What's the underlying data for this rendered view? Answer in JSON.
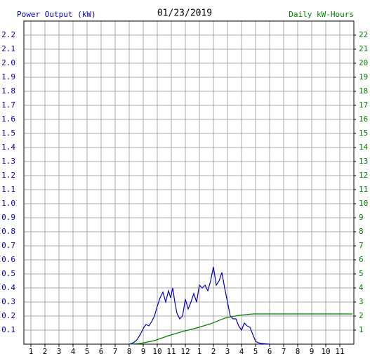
{
  "chart_data": {
    "type": "line",
    "title": "01/23/2019",
    "ylabel": "Power Output (kW)",
    "y2label": "Daily kW-Hours",
    "ylabel_color": "#0000c0",
    "y2label_color": "#008000",
    "grid": true,
    "xlim": [
      0.5,
      24
    ],
    "ylim": [
      0,
      2.3
    ],
    "y2lim": [
      0,
      23
    ],
    "xticks": [
      1,
      2,
      3,
      4,
      5,
      6,
      7,
      8,
      9,
      10,
      11,
      12,
      {
        "value": 13,
        "label": "1"
      },
      {
        "value": 14,
        "label": "2"
      },
      {
        "value": 15,
        "label": "3"
      },
      {
        "value": 16,
        "label": "4"
      },
      {
        "value": 17,
        "label": "5"
      },
      {
        "value": 18,
        "label": "6"
      },
      {
        "value": 19,
        "label": "7"
      },
      {
        "value": 20,
        "label": "8"
      },
      {
        "value": 21,
        "label": "9"
      },
      {
        "value": 22,
        "label": "10"
      },
      {
        "value": 23,
        "label": "11"
      }
    ],
    "yticks": [
      0.1,
      0.2,
      0.3,
      0.4,
      0.5,
      0.6,
      0.7,
      0.8,
      0.9,
      {
        "value": 1,
        "label": "1.0"
      },
      1.1,
      1.2,
      1.3,
      1.4,
      1.5,
      1.6,
      1.7,
      1.8,
      1.9,
      {
        "value": 2,
        "label": "2.0"
      },
      2.1,
      2.2
    ],
    "y2ticks": [
      1,
      2,
      3,
      4,
      5,
      6,
      7,
      8,
      9,
      10,
      11,
      12,
      13,
      14,
      15,
      16,
      17,
      18,
      19,
      20,
      21,
      22
    ],
    "series": [
      {
        "name": "Power Output (kW)",
        "color": "#0000c0",
        "axis": "y",
        "x": [
          8.0,
          8.3,
          8.55,
          8.8,
          9.05,
          9.2,
          9.4,
          9.6,
          9.8,
          10.0,
          10.2,
          10.4,
          10.6,
          10.8,
          10.95,
          11.1,
          11.25,
          11.4,
          11.6,
          11.8,
          12.0,
          12.2,
          12.4,
          12.6,
          12.8,
          13.0,
          13.2,
          13.4,
          13.6,
          13.8,
          14.0,
          14.2,
          14.4,
          14.6,
          14.8,
          15.0,
          15.2,
          15.4,
          15.6,
          15.8,
          16.0,
          16.2,
          16.4,
          16.6,
          16.8,
          17.0,
          17.2,
          17.4,
          18.0
        ],
        "values": [
          0,
          0.01,
          0.03,
          0.07,
          0.12,
          0.14,
          0.13,
          0.16,
          0.2,
          0.27,
          0.33,
          0.37,
          0.3,
          0.38,
          0.33,
          0.4,
          0.3,
          0.22,
          0.18,
          0.2,
          0.32,
          0.25,
          0.3,
          0.36,
          0.3,
          0.42,
          0.4,
          0.42,
          0.38,
          0.45,
          0.55,
          0.42,
          0.45,
          0.51,
          0.4,
          0.3,
          0.2,
          0.18,
          0.18,
          0.13,
          0.1,
          0.15,
          0.13,
          0.12,
          0.07,
          0.02,
          0.01,
          0.005,
          0
        ]
      },
      {
        "name": "Daily kW-Hours",
        "color": "#008000",
        "axis": "y2",
        "x": [
          8.0,
          8.8,
          9.8,
          10.8,
          11.8,
          12.8,
          13.8,
          14.8,
          15.8,
          16.8,
          17.8,
          23.9
        ],
        "values": [
          0,
          0.05,
          0.25,
          0.6,
          0.9,
          1.15,
          1.45,
          1.85,
          2.05,
          2.15,
          2.15,
          2.15
        ]
      }
    ]
  }
}
